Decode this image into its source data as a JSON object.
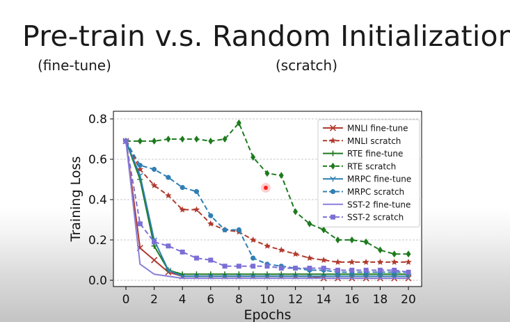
{
  "slide": {
    "title": "Pre-train v.s. Random Initialization",
    "subtitle_left": "(fine-tune)",
    "subtitle_right": "(scratch)"
  },
  "chart_data": {
    "type": "line",
    "title": "",
    "xlabel": "Epochs",
    "ylabel": "Training Loss",
    "xlim": [
      0,
      20
    ],
    "ylim": [
      0,
      0.8
    ],
    "xticks": [
      0,
      2,
      4,
      6,
      8,
      10,
      12,
      14,
      16,
      18,
      20
    ],
    "yticks": [
      0.0,
      0.2,
      0.4,
      0.6,
      0.8
    ],
    "xtick_labels": [
      "0",
      "2",
      "4",
      "6",
      "8",
      "10",
      "12",
      "14",
      "16",
      "18",
      "20"
    ],
    "ytick_labels": [
      "0.0",
      "0.2",
      "0.4",
      "0.6",
      "0.8"
    ],
    "grid": "horizontal dashed",
    "legend_position": "upper-right",
    "x": [
      0,
      1,
      2,
      3,
      4,
      5,
      6,
      7,
      8,
      9,
      10,
      11,
      12,
      13,
      14,
      15,
      16,
      17,
      18,
      19,
      20
    ],
    "series": [
      {
        "name": "MNLI fine-tune",
        "color": "#b03a2e",
        "dashed": false,
        "marker": "x",
        "values": [
          0.69,
          0.16,
          0.1,
          0.04,
          0.02,
          0.02,
          0.02,
          0.02,
          0.02,
          0.02,
          0.02,
          0.02,
          0.02,
          0.02,
          0.01,
          0.01,
          0.01,
          0.01,
          0.01,
          0.01,
          0.01
        ]
      },
      {
        "name": "MNLI scratch",
        "color": "#b03a2e",
        "dashed": true,
        "marker": "star",
        "values": [
          0.69,
          0.55,
          0.47,
          0.42,
          0.35,
          0.35,
          0.28,
          0.25,
          0.24,
          0.2,
          0.17,
          0.15,
          0.13,
          0.11,
          0.1,
          0.09,
          0.09,
          0.09,
          0.09,
          0.09,
          0.09
        ]
      },
      {
        "name": "RTE fine-tune",
        "color": "#1e7a1e",
        "dashed": false,
        "marker": "plus",
        "values": [
          0.69,
          0.5,
          0.17,
          0.05,
          0.03,
          0.03,
          0.03,
          0.03,
          0.03,
          0.03,
          0.03,
          0.03,
          0.03,
          0.03,
          0.03,
          0.03,
          0.03,
          0.03,
          0.03,
          0.03,
          0.03
        ]
      },
      {
        "name": "RTE scratch",
        "color": "#1e7a1e",
        "dashed": true,
        "marker": "diamond",
        "values": [
          0.69,
          0.69,
          0.69,
          0.7,
          0.7,
          0.7,
          0.69,
          0.7,
          0.78,
          0.61,
          0.53,
          0.52,
          0.34,
          0.28,
          0.25,
          0.2,
          0.2,
          0.19,
          0.15,
          0.13,
          0.13
        ]
      },
      {
        "name": "MRPC fine-tune",
        "color": "#2f7fb4",
        "dashed": false,
        "marker": "tri",
        "values": [
          0.69,
          0.52,
          0.2,
          0.05,
          0.02,
          0.02,
          0.02,
          0.02,
          0.02,
          0.02,
          0.02,
          0.02,
          0.02,
          0.02,
          0.02,
          0.02,
          0.02,
          0.02,
          0.02,
          0.02,
          0.02
        ]
      },
      {
        "name": "MRPC scratch",
        "color": "#2f7fb4",
        "dashed": true,
        "marker": "circle",
        "values": [
          0.69,
          0.57,
          0.55,
          0.51,
          0.46,
          0.44,
          0.32,
          0.25,
          0.25,
          0.11,
          0.08,
          0.07,
          0.06,
          0.05,
          0.05,
          0.04,
          0.04,
          0.04,
          0.04,
          0.04,
          0.04
        ]
      },
      {
        "name": "SST-2 fine-tune",
        "color": "#8a7fd9",
        "dashed": false,
        "marker": "none",
        "values": [
          0.69,
          0.08,
          0.03,
          0.02,
          0.01,
          0.01,
          0.01,
          0.01,
          0.01,
          0.01,
          0.01,
          0.01,
          0.01,
          0.01,
          0.01,
          0.01,
          0.01,
          0.01,
          0.01,
          0.01,
          0.01
        ]
      },
      {
        "name": "SST-2 scratch",
        "color": "#7b6fd6",
        "dashed": true,
        "marker": "square",
        "values": [
          0.69,
          0.28,
          0.19,
          0.17,
          0.14,
          0.11,
          0.1,
          0.07,
          0.07,
          0.07,
          0.07,
          0.06,
          0.06,
          0.06,
          0.06,
          0.05,
          0.05,
          0.05,
          0.05,
          0.05,
          0.04
        ]
      }
    ]
  }
}
